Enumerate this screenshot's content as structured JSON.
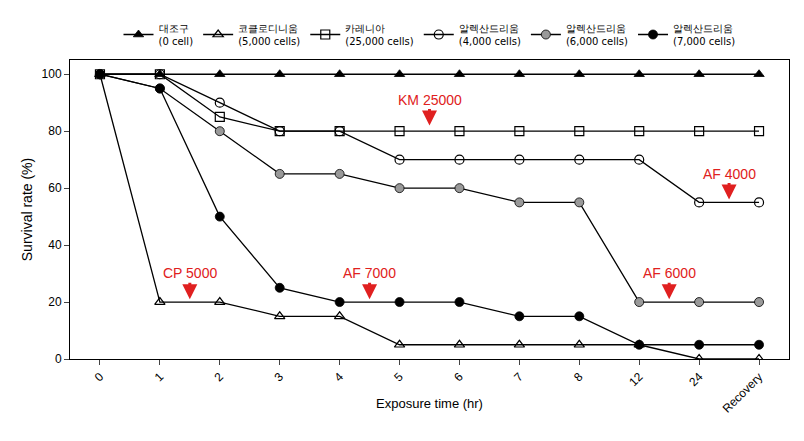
{
  "chart_data": {
    "type": "line",
    "x_label": "Exposure time (hr)",
    "y_label": "Survival rate (%)",
    "categories": [
      "0",
      "1",
      "2",
      "3",
      "4",
      "5",
      "6",
      "7",
      "8",
      "12",
      "24",
      "Recovery"
    ],
    "ylim": [
      0,
      105
    ],
    "yticks": [
      0,
      20,
      40,
      60,
      80,
      100
    ],
    "grid": false,
    "legend": "top",
    "series": [
      {
        "name": "대조구\n(0 cell)",
        "color": "#000000",
        "marker": "triangle-up",
        "values": [
          100,
          100,
          100,
          100,
          100,
          100,
          100,
          100,
          100,
          100,
          100,
          100
        ]
      },
      {
        "name": "코클로디니움\n(5,000 cells)",
        "color": "#ffffff",
        "marker": "triangle-up-open",
        "values": [
          100,
          20,
          20,
          15,
          15,
          5,
          5,
          5,
          5,
          5,
          0,
          0
        ]
      },
      {
        "name": "카레니아\n(25,000 cells)",
        "color": "#ffffff",
        "marker": "square-open",
        "values": [
          100,
          100,
          85,
          80,
          80,
          80,
          80,
          80,
          80,
          80,
          80,
          80
        ]
      },
      {
        "name": "알렉산드리움\n(4,000 cells)",
        "color": "#ffffff",
        "marker": "circle-open",
        "values": [
          100,
          100,
          90,
          80,
          80,
          70,
          70,
          70,
          70,
          70,
          55,
          55
        ]
      },
      {
        "name": "알렉산드리움\n(6,000 cells)",
        "color": "#999999",
        "marker": "circle",
        "values": [
          100,
          95,
          80,
          65,
          65,
          60,
          60,
          55,
          55,
          20,
          20,
          20
        ]
      },
      {
        "name": "알렉산드리움\n(7,000 cells)",
        "color": "#000000",
        "marker": "circle",
        "values": [
          100,
          95,
          50,
          25,
          20,
          20,
          20,
          15,
          15,
          5,
          5,
          5
        ]
      }
    ],
    "annotations": [
      {
        "text": "CP 5000",
        "x": 1.5,
        "y": 21,
        "color": "#e02020"
      },
      {
        "text": "KM 25000",
        "x": 5.5,
        "y": 82,
        "color": "#e02020"
      },
      {
        "text": "AF 7000",
        "x": 4.5,
        "y": 21,
        "color": "#e02020"
      },
      {
        "text": "AF 6000",
        "x": 9.5,
        "y": 21,
        "color": "#e02020"
      },
      {
        "text": "AF 4000",
        "x": 10.5,
        "y": 56,
        "color": "#e02020"
      }
    ]
  }
}
